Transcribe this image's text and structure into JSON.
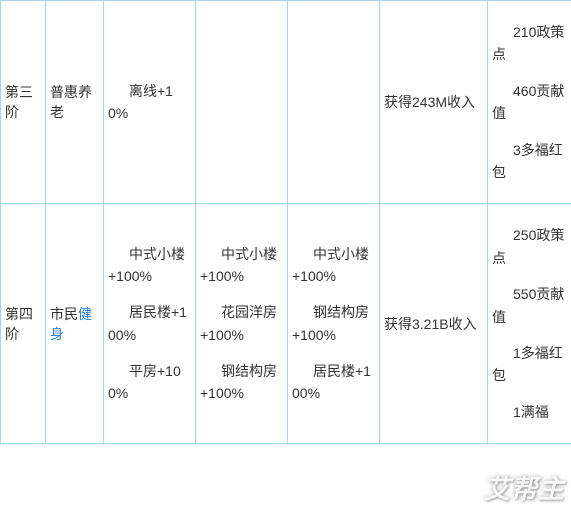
{
  "table": {
    "rows": [
      {
        "stage": "第三阶",
        "name_parts": {
          "prefix": "普惠养老",
          "link": "",
          "suffix": ""
        },
        "colA": [
          "离线+10%"
        ],
        "colB": [],
        "colC": [],
        "colD": "获得243M收入",
        "colE": [
          "210政策点",
          "460贡献值",
          "3多福红包"
        ]
      },
      {
        "stage": "第四阶",
        "name_parts": {
          "prefix": "市民",
          "link": "健身",
          "suffix": ""
        },
        "colA": [
          "中式小楼+100%",
          "居民楼+100%",
          "平房+100%"
        ],
        "colB": [
          "中式小楼+100%",
          "花园洋房+100%",
          "钢结构房+100%"
        ],
        "colC": [
          "中式小楼+100%",
          "钢结构房+100%",
          "居民楼+100%"
        ],
        "colD": "获得3.21B收入",
        "colE": [
          "250政策点",
          "550贡献值",
          "1多福红包",
          "1满福"
        ]
      }
    ]
  },
  "watermark": "艾帮主"
}
